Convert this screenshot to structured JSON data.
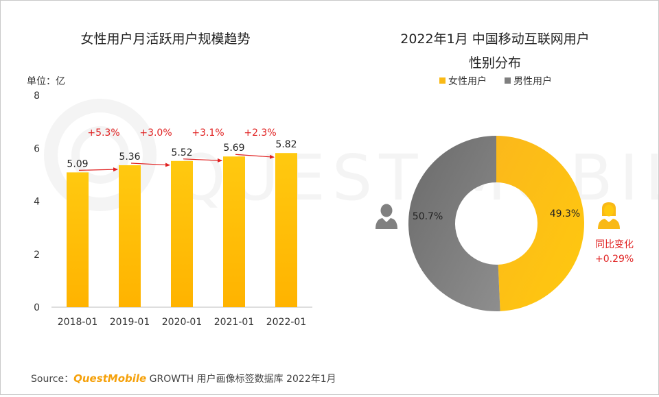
{
  "charts": {
    "left": {
      "title": "女性用户月活跃用户规模趋势",
      "unit": "单位：亿"
    },
    "right": {
      "title_line1": "2022年1月 中国移动互联网用户",
      "title_line2": "性别分布",
      "yoy_label": "同比变化",
      "yoy_value": "+0.29%"
    }
  },
  "source": {
    "prefix": "Source：",
    "brand": "QuestMobile",
    "text": " GROWTH 用户画像标签数据库 2022年1月"
  },
  "watermark": "QUEST MOBILE",
  "colors": {
    "bar": "#ffc20e",
    "female": "#f9b916",
    "male": "#7f7f7f",
    "growth": "#e02020"
  },
  "chart_data": [
    {
      "type": "bar",
      "title": "女性用户月活跃用户规模趋势",
      "ylabel": "单位：亿",
      "categories": [
        "2018-01",
        "2019-01",
        "2020-01",
        "2021-01",
        "2022-01"
      ],
      "values": [
        5.09,
        5.36,
        5.52,
        5.69,
        5.82
      ],
      "value_labels": [
        "5.09",
        "5.36",
        "5.52",
        "5.69",
        "5.82"
      ],
      "growth_labels": [
        "+5.3%",
        "+3.0%",
        "+3.1%",
        "+2.3%"
      ],
      "ylim": [
        0,
        8
      ],
      "yticks": [
        "0",
        "2",
        "4",
        "6",
        "8"
      ],
      "grid": false
    },
    {
      "type": "pie",
      "subtype": "donut",
      "title": "2022年1月 中国移动互联网用户 性别分布",
      "legend_position": "top",
      "labels": [
        "女性用户",
        "男性用户"
      ],
      "values": [
        49.3,
        50.7
      ],
      "value_labels": [
        "49.3%",
        "50.7%"
      ]
    }
  ]
}
